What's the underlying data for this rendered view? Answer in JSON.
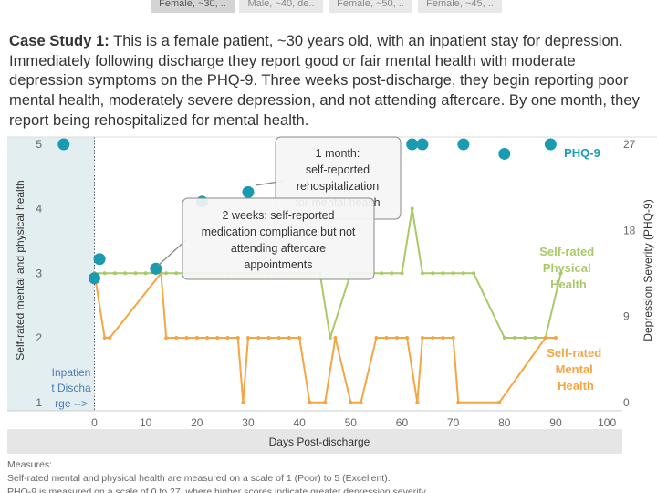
{
  "tabs": [
    "Female, ~30, ..",
    "Male, ~40, de..",
    "Female, ~50, ..",
    "Female, ~45, .."
  ],
  "case_study": {
    "label": "Case Study 1:",
    "text": "This is a female patient, ~30 years old, with an inpatient stay for depression. Immediately following discharge they report good or fair mental health with moderate depression symptoms on the PHQ-9. Three weeks post-discharge, they begin reporting poor mental health, moderately severe depression, and not attending aftercare.  By one month, they report being rehospitalized for mental health."
  },
  "chart_data": {
    "type": "line",
    "x_label": "Days Post-discharge",
    "y_label": "Self-rated mental and physical health",
    "y2_label": "Depression Severity (PHQ-9)",
    "xlim": [
      -17,
      103
    ],
    "xticks": [
      0,
      10,
      20,
      30,
      40,
      50,
      60,
      70,
      80,
      90,
      100
    ],
    "ylim": [
      0.87,
      5.11
    ],
    "yticks": [
      1,
      2,
      3,
      4,
      5
    ],
    "y2lim": [
      -0.86,
      27.76
    ],
    "y2ticks": [
      0,
      9,
      18,
      27
    ],
    "grid": false,
    "inpatient_label": "Inpatient Discharge -->",
    "annotations": [
      [
        "1 month:",
        "self-reported",
        "rehospitalization",
        "for mental health"
      ],
      [
        "2 weeks: self-reported",
        "medication compliance but not",
        "attending aftercare",
        "appointments"
      ]
    ],
    "series": [
      {
        "name": "Self-rated Physical Health",
        "type": "line",
        "color": "#a9c96a",
        "x": [
          0,
          2,
          4,
          6,
          8,
          10,
          12,
          14,
          16,
          18,
          20,
          22,
          24,
          26,
          28,
          30,
          32,
          34,
          36,
          38,
          40,
          42,
          44,
          46,
          50,
          52,
          54,
          56,
          58,
          60,
          62,
          64,
          66,
          68,
          70,
          72,
          74,
          80,
          82,
          84,
          86,
          88,
          91
        ],
        "values": [
          3,
          3,
          3,
          3,
          3,
          3,
          3,
          3,
          3,
          3,
          3,
          3,
          3,
          3,
          3,
          3,
          3,
          3,
          3,
          3,
          3,
          3,
          3,
          2,
          3,
          3,
          3,
          3,
          3,
          3,
          4,
          3,
          3,
          3,
          3,
          3,
          3,
          2,
          2,
          2,
          2,
          2,
          3
        ]
      },
      {
        "name": "Self-rated Mental Health",
        "type": "line",
        "color": "#f5a544",
        "x": [
          0,
          2,
          3,
          13,
          14,
          16,
          18,
          20,
          22,
          24,
          26,
          28,
          29,
          30,
          32,
          34,
          36,
          38,
          40,
          42,
          45,
          47,
          50,
          52,
          55,
          57,
          59,
          61,
          63,
          64,
          66,
          68,
          70,
          71,
          79,
          88,
          90
        ],
        "values": [
          3,
          2,
          2,
          3,
          2,
          2,
          2,
          2,
          2,
          2,
          2,
          2,
          1,
          2,
          2,
          2,
          2,
          2,
          2,
          1,
          1,
          2,
          1,
          1,
          2,
          2,
          2,
          2,
          1,
          2,
          2,
          2,
          2,
          1,
          1,
          2,
          2
        ]
      },
      {
        "name": "PHQ-9",
        "type": "scatter",
        "axis": "y2",
        "color": "#1a9bb0",
        "x": [
          -6,
          0,
          1,
          12,
          21,
          30,
          62,
          64,
          72,
          80,
          89
        ],
        "values": [
          27,
          13,
          15,
          14,
          21,
          22,
          27,
          27,
          27,
          26,
          27
        ]
      }
    ]
  },
  "footer": [
    "Measures:",
    "Self-rated mental and physical health are measured on a scale of 1 (Poor) to 5 (Excellent).",
    "PHQ-9 is measured on a scale of 0 to 27, where higher scores indicate greater depression severity."
  ]
}
